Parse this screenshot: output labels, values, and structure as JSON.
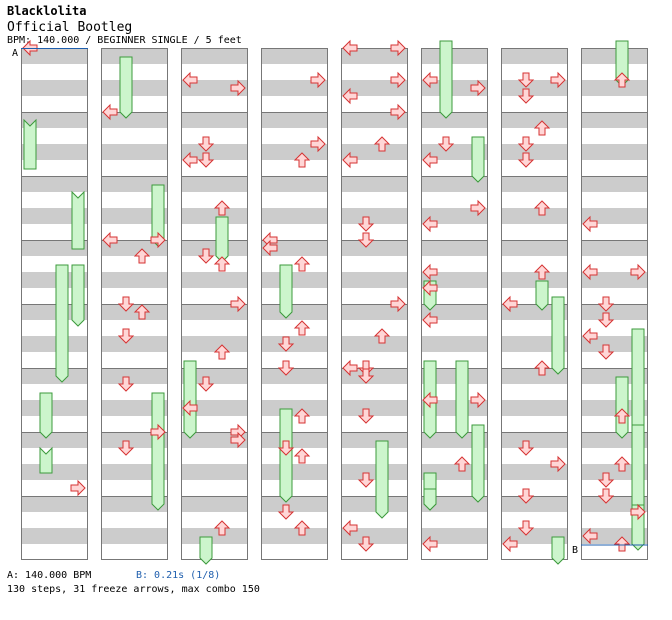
{
  "song": {
    "title": "Blacklolita",
    "artist": "Official Bootleg",
    "meta": "BPM: 140.000 / BEGINNER SINGLE / 5 feet"
  },
  "markers": {
    "a": "A",
    "b": "B"
  },
  "footer": {
    "bpm_a": "A: 140.000 BPM",
    "stop_b": "B: 0.21s (1/8)",
    "stats": "130 steps, 31 freeze arrows, max combo 150"
  },
  "colors": {
    "stripe": "#cccccc",
    "column_border": "#777777",
    "arrow_fill": "#ffd6d6",
    "arrow_stroke": "#d63333",
    "freeze_fill": "#ccf5cc",
    "freeze_stroke": "#3c9a3c",
    "marker_line": "#1f5fae"
  },
  "icons": {
    "tap": "red-arrow-icon",
    "freeze": "green-freeze-arrow-icon"
  },
  "chart_data": {
    "type": "step-chart",
    "columns": 8,
    "measures_per_column": 8,
    "lanes": [
      "left",
      "down",
      "up",
      "right"
    ],
    "start_marker_measure": 0,
    "stop_marker_measure": 63,
    "taps": [
      [
        0,
        0,
        0
      ],
      [
        6,
        7,
        3
      ],
      [
        9,
        0,
        0
      ],
      [
        10,
        8,
        0
      ],
      [
        11,
        0,
        3
      ],
      [
        11,
        2,
        2
      ],
      [
        12,
        0,
        1
      ],
      [
        12,
        1,
        2
      ],
      [
        12,
        4,
        1
      ],
      [
        13,
        2,
        1
      ],
      [
        13,
        8,
        3
      ],
      [
        14,
        2,
        1
      ],
      [
        16,
        4,
        0
      ],
      [
        16,
        5,
        3
      ],
      [
        17,
        4,
        1
      ],
      [
        17,
        6,
        0
      ],
      [
        17,
        6,
        1
      ],
      [
        18,
        4,
        2
      ],
      [
        19,
        2,
        1
      ],
      [
        19,
        3,
        2
      ],
      [
        20,
        0,
        3
      ],
      [
        20,
        6,
        2
      ],
      [
        20,
        10,
        1
      ],
      [
        21,
        5,
        0
      ],
      [
        22,
        0,
        3
      ],
      [
        22,
        1,
        3
      ],
      [
        23,
        4,
        2
      ],
      [
        23,
        10,
        1
      ],
      [
        24,
        4,
        3
      ],
      [
        25,
        4,
        3
      ],
      [
        25,
        6,
        2
      ],
      [
        27,
        0,
        0
      ],
      [
        27,
        1,
        0
      ],
      [
        27,
        3,
        2
      ],
      [
        28,
        3,
        2
      ],
      [
        28,
        5,
        1
      ],
      [
        28,
        8,
        1
      ],
      [
        29,
        6,
        2
      ],
      [
        30,
        2,
        1
      ],
      [
        30,
        3,
        2
      ],
      [
        31,
        2,
        1
      ],
      [
        31,
        4,
        2
      ],
      [
        32,
        0,
        0
      ],
      [
        32,
        0,
        3
      ],
      [
        32,
        4,
        3
      ],
      [
        32,
        6,
        0
      ],
      [
        33,
        0,
        3
      ],
      [
        33,
        4,
        2
      ],
      [
        33,
        6,
        0
      ],
      [
        34,
        6,
        1
      ],
      [
        35,
        0,
        1
      ],
      [
        36,
        0,
        3
      ],
      [
        36,
        4,
        2
      ],
      [
        36,
        8,
        1
      ],
      [
        37,
        0,
        0
      ],
      [
        37,
        1,
        1
      ],
      [
        37,
        6,
        1
      ],
      [
        38,
        6,
        1
      ],
      [
        39,
        4,
        0
      ],
      [
        39,
        6,
        1
      ],
      [
        40,
        4,
        0
      ],
      [
        40,
        5,
        3
      ],
      [
        41,
        4,
        1
      ],
      [
        41,
        6,
        0
      ],
      [
        42,
        4,
        3
      ],
      [
        42,
        6,
        0
      ],
      [
        43,
        4,
        0
      ],
      [
        43,
        6,
        0
      ],
      [
        44,
        2,
        0
      ],
      [
        45,
        4,
        0
      ],
      [
        45,
        4,
        3
      ],
      [
        46,
        4,
        2
      ],
      [
        47,
        6,
        0
      ],
      [
        48,
        4,
        1
      ],
      [
        48,
        4,
        3
      ],
      [
        48,
        6,
        1
      ],
      [
        49,
        2,
        2
      ],
      [
        49,
        4,
        1
      ],
      [
        49,
        6,
        1
      ],
      [
        50,
        4,
        2
      ],
      [
        51,
        4,
        2
      ],
      [
        52,
        0,
        0
      ],
      [
        53,
        0,
        2
      ],
      [
        54,
        2,
        1
      ],
      [
        54,
        4,
        3
      ],
      [
        55,
        0,
        1
      ],
      [
        55,
        4,
        1
      ],
      [
        55,
        6,
        0
      ],
      [
        56,
        4,
        2
      ],
      [
        58,
        6,
        0
      ],
      [
        59,
        4,
        0
      ],
      [
        59,
        4,
        3
      ],
      [
        60,
        0,
        1
      ],
      [
        60,
        2,
        1
      ],
      [
        60,
        4,
        0
      ],
      [
        60,
        6,
        1
      ],
      [
        61,
        6,
        2
      ],
      [
        62,
        4,
        2
      ],
      [
        62,
        6,
        1
      ],
      [
        63,
        0,
        1
      ],
      [
        63,
        2,
        3
      ],
      [
        63,
        5,
        0
      ],
      [
        63,
        6,
        2
      ]
    ],
    "freezes": [
      [
        1,
        8,
        0,
        1,
        1
      ],
      [
        2,
        10,
        3,
        2,
        2
      ],
      [
        3,
        4,
        3,
        4,
        2
      ],
      [
        3,
        4,
        2,
        5,
        1
      ],
      [
        5,
        4,
        1,
        6,
        0
      ],
      [
        6,
        6,
        1,
        6,
        2
      ],
      [
        8,
        2,
        1,
        9,
        0
      ],
      [
        10,
        2,
        3,
        11,
        0
      ],
      [
        13,
        4,
        3,
        15,
        1
      ],
      [
        18,
        6,
        2,
        19,
        2
      ],
      [
        20,
        8,
        0,
        22,
        0
      ],
      [
        23,
        6,
        1,
        24,
        0
      ],
      [
        27,
        4,
        1,
        28,
        1
      ],
      [
        29,
        6,
        1,
        31,
        0
      ],
      [
        38,
        2,
        2,
        39,
        2
      ],
      [
        40,
        0,
        1,
        41,
        0
      ],
      [
        41,
        4,
        3,
        42,
        0
      ],
      [
        43,
        6,
        0,
        43,
        8
      ],
      [
        45,
        0,
        0,
        46,
        0
      ],
      [
        45,
        0,
        2,
        45,
        8
      ],
      [
        45,
        8,
        3,
        47,
        0
      ],
      [
        46,
        6,
        0,
        47,
        1
      ],
      [
        46,
        8,
        0,
        47,
        1
      ],
      [
        51,
        6,
        2,
        52,
        0
      ],
      [
        52,
        0,
        3,
        53,
        0
      ],
      [
        55,
        6,
        3,
        58,
        0
      ],
      [
        56,
        0,
        2,
        56,
        4
      ],
      [
        60,
        4,
        3,
        62,
        0
      ],
      [
        61,
        2,
        2,
        62,
        0
      ],
      [
        62,
        0,
        3,
        63,
        4
      ],
      [
        63,
        2,
        3,
        63,
        6
      ]
    ]
  }
}
